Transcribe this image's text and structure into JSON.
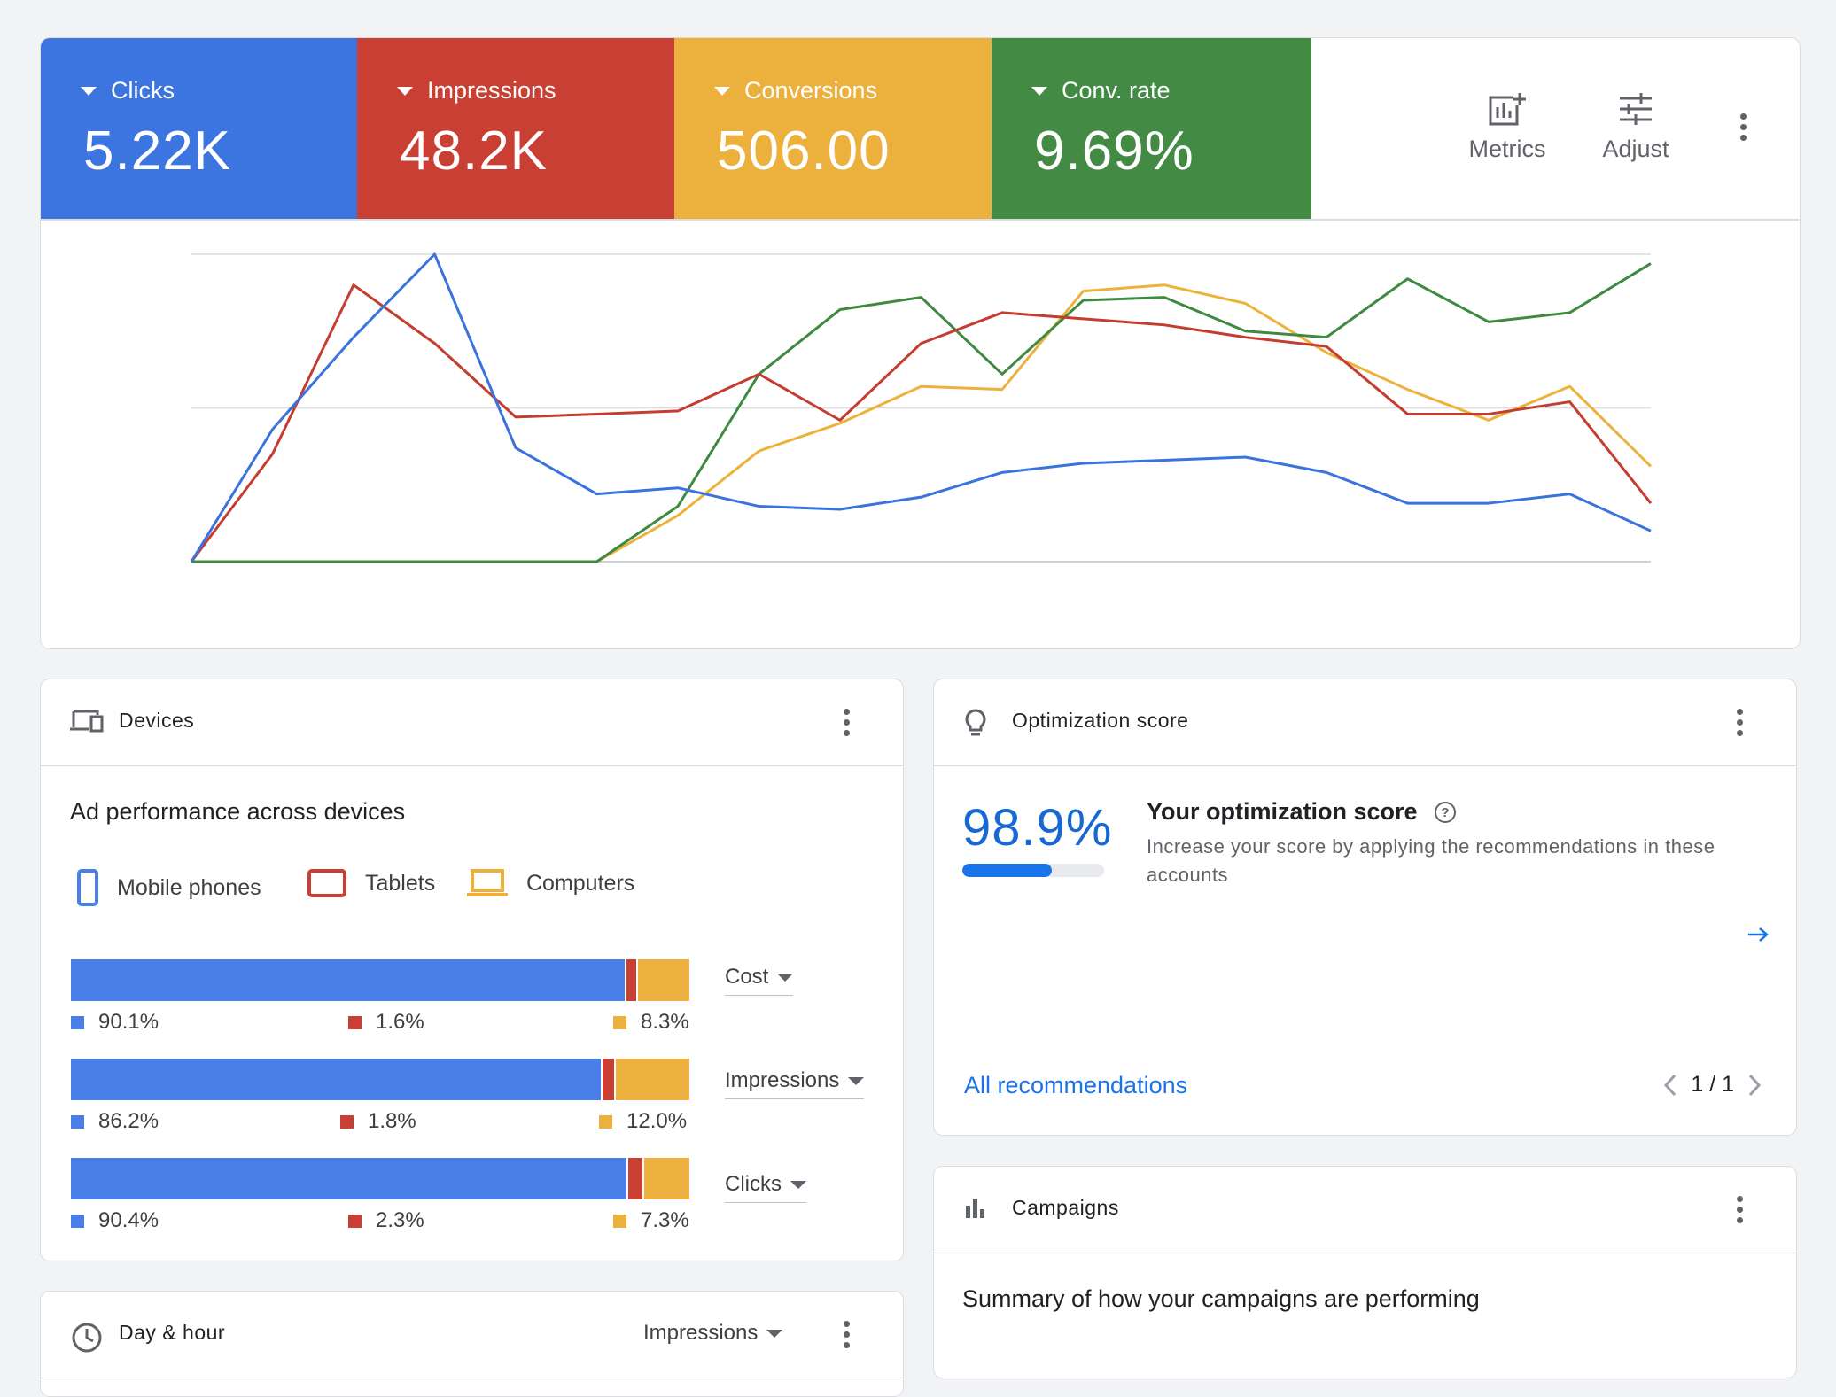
{
  "colors": {
    "blue": "#3c74e0",
    "red": "#c93f33",
    "yellow": "#ecb03d",
    "green": "#438a44",
    "chart_blue": "#3b73de",
    "chart_red": "#c43d30",
    "chart_yellow": "#edb23b",
    "chart_green": "#3e8a40"
  },
  "performance": {
    "metrics": [
      {
        "label": "Clicks",
        "value": "5.22K",
        "color": "#3c74e0"
      },
      {
        "label": "Impressions",
        "value": "48.2K",
        "color": "#c93f33"
      },
      {
        "label": "Conversions",
        "value": "506.00",
        "color": "#ecb03d"
      },
      {
        "label": "Conv. rate",
        "value": "9.69%",
        "color": "#438a44"
      }
    ],
    "tools": {
      "metrics_label": "Metrics",
      "metrics_icon": "add-chart-icon",
      "adjust_label": "Adjust",
      "adjust_icon": "tune-icon"
    }
  },
  "chart_data": {
    "type": "line",
    "title": "",
    "xlabel": "",
    "ylabel": "",
    "ylim": [
      0,
      100
    ],
    "grid": true,
    "x": [
      1,
      2,
      3,
      4,
      5,
      6,
      7,
      8,
      9,
      10,
      11,
      12,
      13,
      14,
      15,
      16,
      17,
      18,
      19
    ],
    "series": [
      {
        "color": "#3b73de",
        "values": [
          0,
          43,
          73,
          100,
          37,
          22,
          24,
          18,
          17,
          21,
          29,
          32,
          33,
          34,
          29,
          19,
          19,
          22,
          10
        ]
      },
      {
        "color": "#c43d30",
        "values": [
          0,
          35,
          90,
          71,
          47,
          48,
          49,
          61,
          46,
          71,
          81,
          79,
          77,
          73,
          70,
          48,
          48,
          52,
          19
        ]
      },
      {
        "color": "#edb23b",
        "values": [
          0,
          0,
          0,
          0,
          0,
          0,
          15,
          36,
          45,
          57,
          56,
          88,
          90,
          84,
          68,
          56,
          46,
          57,
          31
        ]
      },
      {
        "color": "#3e8a40",
        "values": [
          0,
          0,
          0,
          0,
          0,
          0,
          18,
          61,
          82,
          86,
          61,
          85,
          86,
          75,
          73,
          92,
          78,
          81,
          97
        ]
      }
    ]
  },
  "devices": {
    "title": "Devices",
    "icon": "devices-icon",
    "subtitle": "Ad performance across devices",
    "legend": [
      {
        "label": "Mobile phones",
        "icon": "smartphone-icon",
        "color": "#4a7fe8"
      },
      {
        "label": "Tablets",
        "icon": "tablet-icon",
        "color": "#c93f33"
      },
      {
        "label": "Computers",
        "icon": "laptop-icon",
        "color": "#ecb03d"
      }
    ],
    "rows": [
      {
        "metric": "Cost",
        "mobile": 90.1,
        "tablet": 1.6,
        "computer": 8.3,
        "mobile_text": "90.1%",
        "tablet_text": "1.6%",
        "computer_text": "8.3%"
      },
      {
        "metric": "Impressions",
        "mobile": 86.2,
        "tablet": 1.8,
        "computer": 12.0,
        "mobile_text": "86.2%",
        "tablet_text": "1.8%",
        "computer_text": "12.0%"
      },
      {
        "metric": "Clicks",
        "mobile": 90.4,
        "tablet": 2.3,
        "computer": 7.3,
        "mobile_text": "90.4%",
        "tablet_text": "2.3%",
        "computer_text": "7.3%"
      }
    ]
  },
  "optimization": {
    "title": "Optimization score",
    "icon": "lightbulb-icon",
    "score_text": "98.9%",
    "score_value": 98.9,
    "heading": "Your optimization score",
    "help_icon": "help-circle-icon",
    "description": "Increase your score by applying the recommendations in these accounts",
    "link_label": "All recommendations",
    "pager_text": "1 / 1"
  },
  "campaigns": {
    "title": "Campaigns",
    "icon": "bar-chart-icon",
    "subtitle": "Summary of how your campaigns are performing"
  },
  "dayhour": {
    "title": "Day & hour",
    "icon": "schedule-icon",
    "selector": "Impressions"
  }
}
